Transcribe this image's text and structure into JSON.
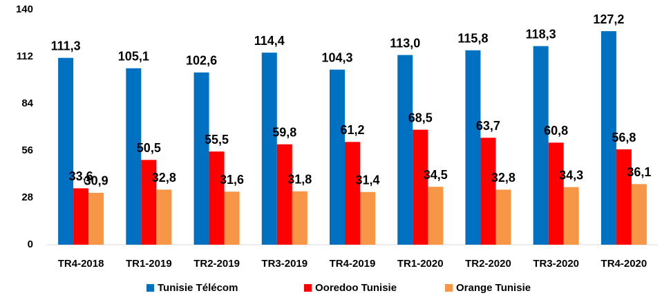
{
  "chart_data": {
    "type": "bar",
    "categories": [
      "TR4-2018",
      "TR1-2019",
      "TR2-2019",
      "TR3-2019",
      "TR4-2019",
      "TR1-2020",
      "TR2-2020",
      "TR3-2020",
      "TR4-2020"
    ],
    "series": [
      {
        "name": "Tunisie Télécom",
        "color": "#0070c0",
        "values": [
          111.3,
          105.1,
          102.6,
          114.4,
          104.3,
          113.0,
          115.8,
          118.3,
          127.2
        ],
        "value_labels": [
          "111,3",
          "105,1",
          "102,6",
          "114,4",
          "104,3",
          "113,0",
          "115,8",
          "118,3",
          "127,2"
        ]
      },
      {
        "name": "Ooredoo Tunisie",
        "color": "#ff0000",
        "values": [
          33.6,
          50.5,
          55.5,
          59.8,
          61.2,
          68.5,
          63.7,
          60.8,
          56.8
        ],
        "value_labels": [
          "33,6",
          "50,5",
          "55,5",
          "59,8",
          "61,2",
          "68,5",
          "63,7",
          "60,8",
          "56,8"
        ]
      },
      {
        "name": "Orange Tunisie",
        "color": "#f79646",
        "values": [
          30.9,
          32.8,
          31.6,
          31.8,
          31.4,
          34.5,
          32.8,
          34.3,
          36.1
        ],
        "value_labels": [
          "30,9",
          "32,8",
          "31,6",
          "31,8",
          "31,4",
          "34,5",
          "32,8",
          "34,3",
          "36,1"
        ]
      }
    ],
    "ylim": [
      0,
      140
    ],
    "yticks": [
      0,
      28,
      56,
      84,
      112,
      140
    ],
    "grid": false,
    "legend": "bottom"
  }
}
